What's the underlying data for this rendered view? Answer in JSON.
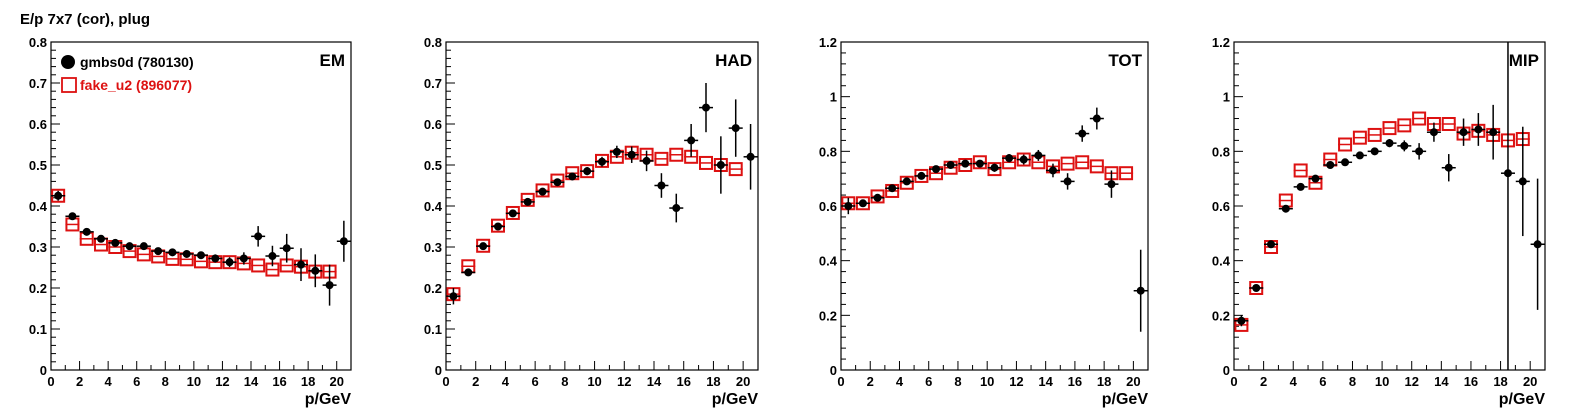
{
  "figure_title": "E/p 7x7 (cor), plug",
  "legend": {
    "entries": [
      {
        "label": "gmbs0d (780130)",
        "marker": "filled-circle",
        "color": "#000000"
      },
      {
        "label": "fake_u2 (896077)",
        "marker": "open-square",
        "color": "#dd1111"
      }
    ]
  },
  "chart_data": [
    {
      "type": "scatter",
      "panel_label": "EM",
      "xlabel": "p/GeV",
      "xlim": [
        0,
        21
      ],
      "ylim": [
        0,
        0.8
      ],
      "xticks": [
        0,
        2,
        4,
        6,
        8,
        10,
        12,
        14,
        16,
        18,
        20
      ],
      "yticks": [
        0,
        0.1,
        0.2,
        0.3,
        0.4,
        0.5,
        0.6,
        0.7,
        0.8
      ],
      "ytick_labels": [
        "0",
        "0.1",
        "0.2",
        "0.3",
        "0.4",
        "0.5",
        "0.6",
        "0.7",
        "0.8"
      ],
      "series": [
        {
          "name": "gmbs0d (780130)",
          "x": [
            0.5,
            1.5,
            2.5,
            3.5,
            4.5,
            5.5,
            6.5,
            7.5,
            8.5,
            9.5,
            10.5,
            11.5,
            12.5,
            13.5,
            14.5,
            15.5,
            16.5,
            17.5,
            18.5,
            19.5,
            20.5
          ],
          "y": [
            0.425,
            0.375,
            0.337,
            0.32,
            0.31,
            0.302,
            0.302,
            0.29,
            0.287,
            0.283,
            0.28,
            0.272,
            0.263,
            0.272,
            0.326,
            0.278,
            0.297,
            0.257,
            0.242,
            0.207,
            0.314
          ],
          "err": [
            0.012,
            0.006,
            0.006,
            0.006,
            0.006,
            0.006,
            0.006,
            0.006,
            0.006,
            0.006,
            0.008,
            0.01,
            0.012,
            0.015,
            0.025,
            0.025,
            0.035,
            0.04,
            0.04,
            0.05,
            0.05
          ]
        },
        {
          "name": "fake_u2 (896077)",
          "x": [
            0.5,
            1.5,
            2.5,
            3.5,
            4.5,
            5.5,
            6.5,
            7.5,
            8.5,
            9.5,
            10.5,
            11.5,
            12.5,
            13.5,
            14.5,
            15.5,
            16.5,
            17.5,
            18.5,
            19.5
          ],
          "y": [
            0.425,
            0.355,
            0.32,
            0.306,
            0.3,
            0.29,
            0.282,
            0.277,
            0.271,
            0.27,
            0.265,
            0.263,
            0.263,
            0.26,
            0.255,
            0.245,
            0.255,
            0.252,
            0.24,
            0.24
          ]
        }
      ]
    },
    {
      "type": "scatter",
      "panel_label": "HAD",
      "xlabel": "p/GeV",
      "xlim": [
        0,
        21
      ],
      "ylim": [
        0,
        0.8
      ],
      "xticks": [
        0,
        2,
        4,
        6,
        8,
        10,
        12,
        14,
        16,
        18,
        20
      ],
      "yticks": [
        0,
        0.1,
        0.2,
        0.3,
        0.4,
        0.5,
        0.6,
        0.7,
        0.8
      ],
      "ytick_labels": [
        "0",
        "0.1",
        "0.2",
        "0.3",
        "0.4",
        "0.5",
        "0.6",
        "0.7",
        "0.8"
      ],
      "series": [
        {
          "name": "gmbs0d (780130)",
          "x": [
            0.5,
            1.5,
            2.5,
            3.5,
            4.5,
            5.5,
            6.5,
            7.5,
            8.5,
            9.5,
            10.5,
            11.5,
            12.5,
            13.5,
            14.5,
            15.5,
            16.5,
            17.5,
            18.5,
            19.5,
            20.5
          ],
          "y": [
            0.18,
            0.238,
            0.302,
            0.35,
            0.382,
            0.41,
            0.435,
            0.458,
            0.472,
            0.485,
            0.508,
            0.532,
            0.525,
            0.51,
            0.45,
            0.395,
            0.56,
            0.64,
            0.5,
            0.59,
            0.52
          ],
          "err": [
            0.02,
            0.008,
            0.008,
            0.008,
            0.008,
            0.008,
            0.008,
            0.008,
            0.008,
            0.01,
            0.012,
            0.015,
            0.02,
            0.025,
            0.03,
            0.035,
            0.04,
            0.06,
            0.07,
            0.07,
            0.08
          ]
        },
        {
          "name": "fake_u2 (896077)",
          "x": [
            0.5,
            1.5,
            2.5,
            3.5,
            4.5,
            5.5,
            6.5,
            7.5,
            8.5,
            9.5,
            10.5,
            11.5,
            12.5,
            13.5,
            14.5,
            15.5,
            16.5,
            17.5,
            18.5,
            19.5
          ],
          "y": [
            0.185,
            0.253,
            0.303,
            0.352,
            0.383,
            0.415,
            0.438,
            0.462,
            0.48,
            0.485,
            0.51,
            0.52,
            0.53,
            0.525,
            0.515,
            0.525,
            0.52,
            0.505,
            0.5,
            0.49
          ]
        }
      ]
    },
    {
      "type": "scatter",
      "panel_label": "TOT",
      "xlabel": "p/GeV",
      "xlim": [
        0,
        21
      ],
      "ylim": [
        0,
        1.2
      ],
      "xticks": [
        0,
        2,
        4,
        6,
        8,
        10,
        12,
        14,
        16,
        18,
        20
      ],
      "yticks": [
        0,
        0.2,
        0.4,
        0.6,
        0.8,
        1.0,
        1.2
      ],
      "ytick_labels": [
        "0",
        "0.2",
        "0.4",
        "0.6",
        "0.8",
        "1",
        "1.2"
      ],
      "series": [
        {
          "name": "gmbs0d (780130)",
          "x": [
            0.5,
            1.5,
            2.5,
            3.5,
            4.5,
            5.5,
            6.5,
            7.5,
            8.5,
            9.5,
            10.5,
            11.5,
            12.5,
            13.5,
            14.5,
            15.5,
            16.5,
            17.5,
            18.5,
            20.5
          ],
          "y": [
            0.6,
            0.61,
            0.63,
            0.665,
            0.69,
            0.71,
            0.735,
            0.75,
            0.755,
            0.755,
            0.74,
            0.775,
            0.77,
            0.785,
            0.73,
            0.69,
            0.865,
            0.92,
            0.68,
            0.29
          ],
          "err": [
            0.03,
            0.01,
            0.01,
            0.01,
            0.01,
            0.01,
            0.01,
            0.01,
            0.01,
            0.012,
            0.015,
            0.015,
            0.018,
            0.02,
            0.025,
            0.03,
            0.03,
            0.04,
            0.05,
            0.15
          ]
        },
        {
          "name": "fake_u2 (896077)",
          "x": [
            0.5,
            1.5,
            2.5,
            3.5,
            4.5,
            5.5,
            6.5,
            7.5,
            8.5,
            9.5,
            10.5,
            11.5,
            12.5,
            13.5,
            14.5,
            15.5,
            16.5,
            17.5,
            18.5,
            19.5
          ],
          "y": [
            0.61,
            0.61,
            0.635,
            0.655,
            0.685,
            0.71,
            0.72,
            0.74,
            0.75,
            0.76,
            0.735,
            0.76,
            0.77,
            0.76,
            0.745,
            0.755,
            0.76,
            0.745,
            0.72,
            0.72
          ]
        }
      ]
    },
    {
      "type": "scatter",
      "panel_label": "MIP",
      "xlabel": "p/GeV",
      "xlim": [
        0,
        21
      ],
      "ylim": [
        0,
        1.2
      ],
      "xticks": [
        0,
        2,
        4,
        6,
        8,
        10,
        12,
        14,
        16,
        18,
        20
      ],
      "yticks": [
        0,
        0.2,
        0.4,
        0.6,
        0.8,
        1.0,
        1.2
      ],
      "ytick_labels": [
        "0",
        "0.2",
        "0.4",
        "0.6",
        "0.8",
        "1",
        "1.2"
      ],
      "series": [
        {
          "name": "gmbs0d (780130)",
          "x": [
            0.5,
            1.5,
            2.5,
            3.5,
            4.5,
            5.5,
            6.5,
            7.5,
            8.5,
            9.5,
            10.5,
            11.5,
            12.5,
            13.5,
            14.5,
            15.5,
            16.5,
            17.5,
            18.5,
            19.5,
            20.5
          ],
          "y": [
            0.18,
            0.3,
            0.46,
            0.59,
            0.67,
            0.7,
            0.75,
            0.76,
            0.785,
            0.8,
            0.83,
            0.82,
            0.8,
            0.87,
            0.74,
            0.87,
            0.88,
            0.87,
            0.72,
            0.69,
            0.46
          ],
          "err": [
            0.02,
            0.01,
            0.01,
            0.01,
            0.01,
            0.01,
            0.01,
            0.01,
            0.012,
            0.012,
            0.015,
            0.02,
            0.03,
            0.035,
            0.05,
            0.05,
            0.06,
            0.1,
            0.75,
            0.2,
            0.24
          ]
        },
        {
          "name": "fake_u2 (896077)",
          "x": [
            0.5,
            1.5,
            2.5,
            3.5,
            4.5,
            5.5,
            6.5,
            7.5,
            8.5,
            9.5,
            10.5,
            11.5,
            12.5,
            13.5,
            14.5,
            15.5,
            16.5,
            17.5,
            18.5,
            19.5
          ],
          "y": [
            0.165,
            0.3,
            0.45,
            0.62,
            0.73,
            0.685,
            0.77,
            0.825,
            0.85,
            0.86,
            0.885,
            0.895,
            0.92,
            0.9,
            0.9,
            0.865,
            0.875,
            0.86,
            0.84,
            0.845
          ]
        }
      ]
    }
  ]
}
